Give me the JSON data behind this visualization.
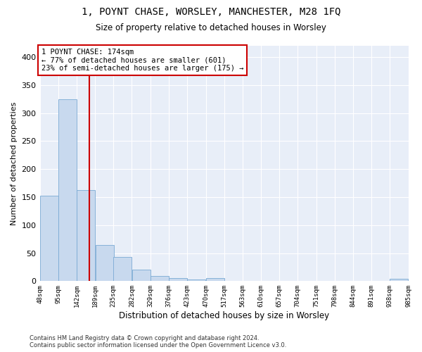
{
  "title": "1, POYNT CHASE, WORSLEY, MANCHESTER, M28 1FQ",
  "subtitle": "Size of property relative to detached houses in Worsley",
  "xlabel": "Distribution of detached houses by size in Worsley",
  "ylabel": "Number of detached properties",
  "bar_color": "#c8d9ee",
  "bar_edge_color": "#7aaad4",
  "background_color": "#e8eef8",
  "grid_color": "#ffffff",
  "vline_x": 174,
  "vline_color": "#cc0000",
  "annotation_text": "1 POYNT CHASE: 174sqm\n← 77% of detached houses are smaller (601)\n23% of semi-detached houses are larger (175) →",
  "annotation_box_color": "#ffffff",
  "annotation_box_edge": "#cc0000",
  "footer": "Contains HM Land Registry data © Crown copyright and database right 2024.\nContains public sector information licensed under the Open Government Licence v3.0.",
  "bin_edges": [
    48,
    95,
    142,
    189,
    235,
    282,
    329,
    376,
    423,
    470,
    517,
    563,
    610,
    657,
    704,
    751,
    798,
    844,
    891,
    938,
    985
  ],
  "bar_heights": [
    152,
    325,
    163,
    64,
    43,
    20,
    9,
    5,
    3,
    5,
    0,
    0,
    0,
    0,
    0,
    0,
    0,
    0,
    0,
    4
  ],
  "ylim": [
    0,
    420
  ],
  "yticks": [
    0,
    50,
    100,
    150,
    200,
    250,
    300,
    350,
    400
  ]
}
